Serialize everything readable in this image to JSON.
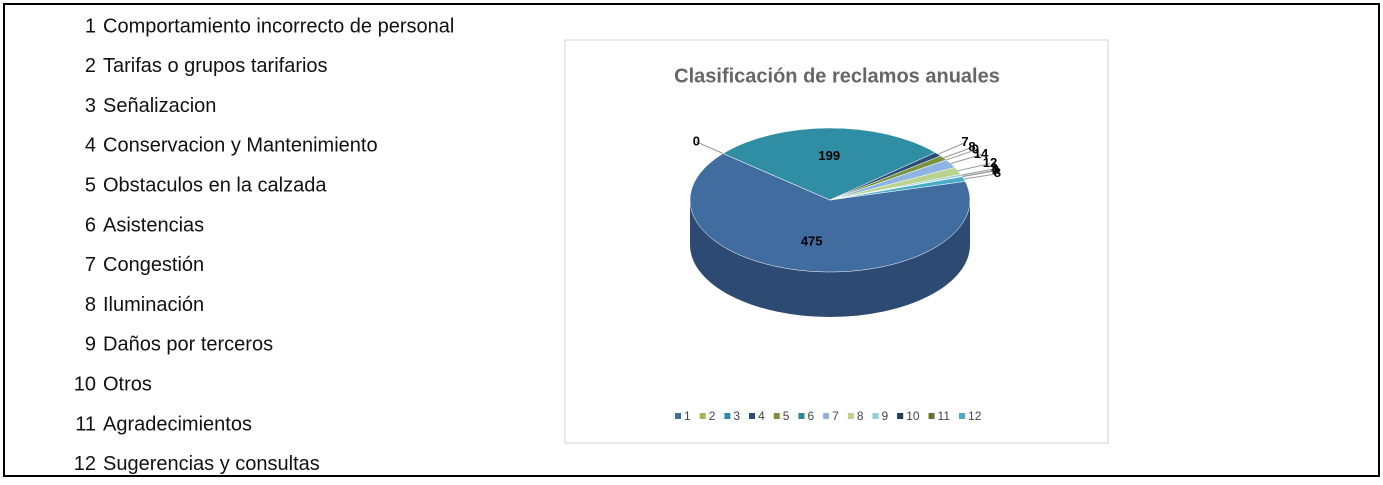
{
  "chart_data": {
    "type": "pie",
    "title": "Clasificación de reclamos anuales",
    "categories": [
      "1",
      "2",
      "3",
      "4",
      "5",
      "6",
      "7",
      "8",
      "9",
      "10",
      "11",
      "12"
    ],
    "category_names": [
      "Comportamiento incorrecto de personal",
      "Tarifas o grupos tarifarios",
      "Señalizacion",
      "Conservacion y Mantenimiento",
      "Obstaculos en la calzada",
      "Asistencias",
      "Congestión",
      "Iluminación",
      "Daños por terceros",
      "Otros",
      "Agradecimientos",
      "Sugerencias y consultas"
    ],
    "values": [
      475,
      0,
      199,
      7,
      8,
      0,
      14,
      12,
      3,
      1,
      0,
      8
    ],
    "colors": [
      "#416c9f",
      "#9bbb59",
      "#2f8ea3",
      "#2c4d75",
      "#77933c",
      "#31849b",
      "#8eb4e3",
      "#b9d38f",
      "#93cddd",
      "#1f3a5f",
      "#5f7530",
      "#4bacc6"
    ]
  }
}
